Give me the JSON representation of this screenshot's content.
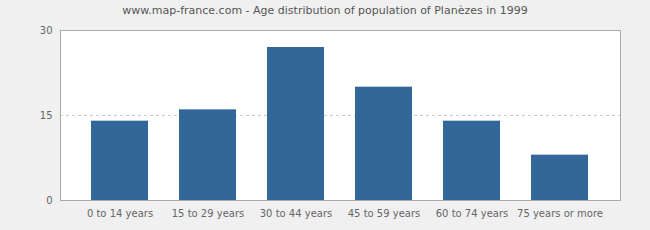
{
  "chart_data": {
    "type": "bar",
    "title": "www.map-france.com - Age distribution of population of Planèzes in 1999",
    "categories": [
      "0 to 14 years",
      "15 to 29 years",
      "30 to 44 years",
      "45 to 59 years",
      "60 to 74 years",
      "75 years or more"
    ],
    "values": [
      14,
      16,
      27,
      20,
      14,
      8
    ],
    "color": "#336699",
    "ylim": [
      0,
      30
    ],
    "yticks": [
      0,
      15,
      30
    ],
    "grid": true
  }
}
